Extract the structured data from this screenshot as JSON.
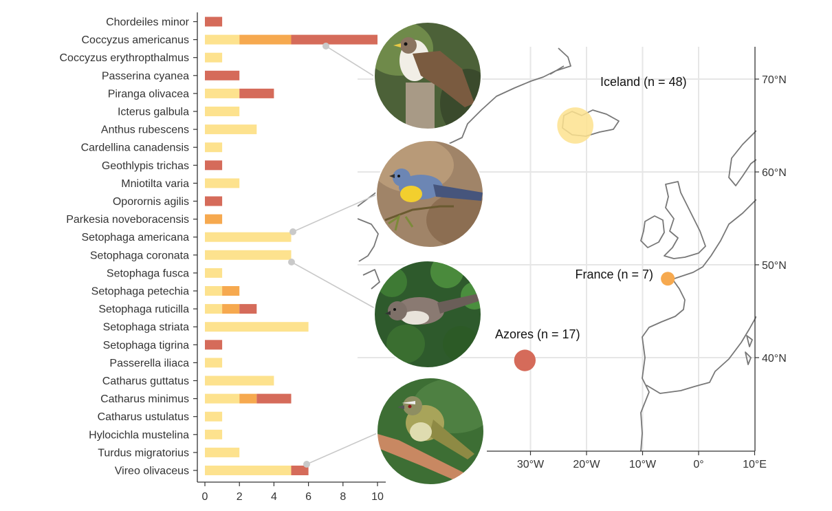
{
  "colors": {
    "iceland": "#FDE28E",
    "france": "#F6A94F",
    "azores": "#D56B5A",
    "grid": "#e6e6e6",
    "axis": "#333333",
    "coast": "#777777"
  },
  "chart_data": [
    {
      "type": "bar",
      "orientation": "horizontal",
      "stacked": true,
      "categories": [
        "Chordeiles minor",
        "Coccyzus americanus",
        "Coccyzus erythropthalmus",
        "Passerina cyanea",
        "Piranga olivacea",
        "Icterus galbula",
        "Anthus rubescens",
        "Cardellina canadensis",
        "Geothlypis trichas",
        "Mniotilta varia",
        "Oporornis agilis",
        "Parkesia noveboracensis",
        "Setophaga americana",
        "Setophaga coronata",
        "Setophaga fusca",
        "Setophaga petechia",
        "Setophaga ruticilla",
        "Setophaga striata",
        "Setophaga tigrina",
        "Passerella iliaca",
        "Catharus guttatus",
        "Catharus minimus",
        "Catharus ustulatus",
        "Hylocichla mustelina",
        "Turdus migratorius",
        "Vireo olivaceus"
      ],
      "series": [
        {
          "key": "iceland",
          "values": [
            0,
            2,
            1,
            0,
            2,
            2,
            3,
            1,
            0,
            2,
            0,
            0,
            5,
            5,
            1,
            1,
            1,
            6,
            0,
            1,
            4,
            2,
            1,
            1,
            2,
            5
          ]
        },
        {
          "key": "france",
          "values": [
            0,
            3,
            0,
            0,
            0,
            0,
            0,
            0,
            0,
            0,
            0,
            1,
            0,
            0,
            0,
            1,
            1,
            0,
            0,
            0,
            0,
            1,
            0,
            0,
            0,
            0
          ]
        },
        {
          "key": "azores",
          "values": [
            1,
            5,
            0,
            2,
            2,
            0,
            0,
            0,
            1,
            0,
            1,
            0,
            0,
            0,
            0,
            0,
            1,
            0,
            1,
            0,
            0,
            2,
            0,
            0,
            0,
            1
          ]
        }
      ],
      "xticks": [
        "0",
        "2",
        "4",
        "6",
        "8",
        "10"
      ],
      "xlim": [
        0,
        10
      ],
      "xlabel": "",
      "ylabel": ""
    },
    {
      "type": "map",
      "lon_ticks": [
        "30°W",
        "20°W",
        "10°W",
        "0°",
        "10°E"
      ],
      "lat_ticks": [
        "40°N",
        "50°N",
        "60°N",
        "70°N"
      ],
      "locations": [
        {
          "key": "iceland",
          "label": "Iceland (n = 48)",
          "lon": -22,
          "lat": 65,
          "n": 48
        },
        {
          "key": "france",
          "label": "France (n = 7)",
          "lon": -5.5,
          "lat": 48.5,
          "n": 7
        },
        {
          "key": "azores",
          "label": "Azores (n = 17)",
          "lon": -31,
          "lat": 39.7,
          "n": 17
        }
      ]
    }
  ],
  "photos": [
    {
      "species": "Coccyzus americanus",
      "icon": "cuckoo-photo"
    },
    {
      "species": "Setophaga americana",
      "icon": "parula-photo"
    },
    {
      "species": "Setophaga coronata",
      "icon": "yellow-rumped-warbler-photo"
    },
    {
      "species": "Vireo olivaceus",
      "icon": "red-eyed-vireo-photo"
    }
  ]
}
